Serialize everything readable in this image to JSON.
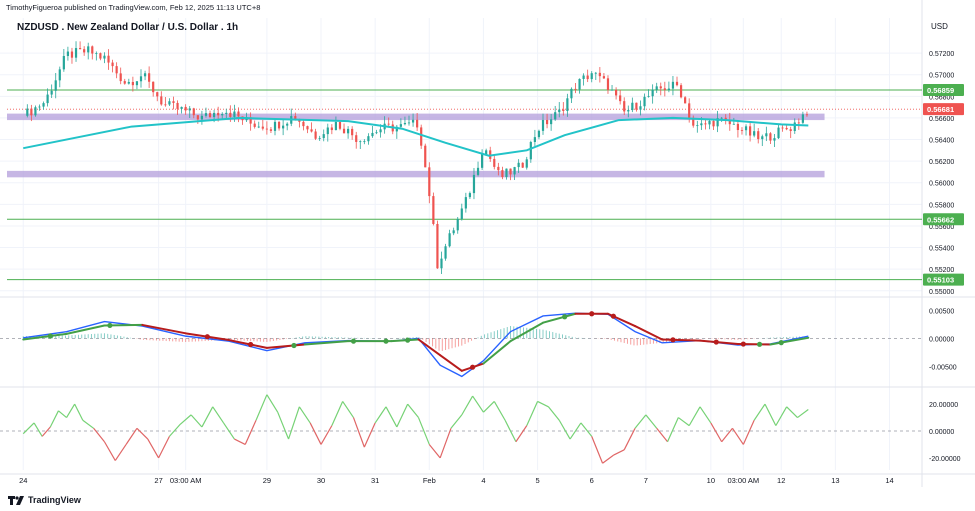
{
  "header": {
    "published": "TimothyFigueroa published on TradingView.com, Feb 12, 2025 11:13 UTC+8",
    "title": "NZDUSD . New Zealand Dollar / U.S. Dollar . 1h",
    "currency": "USD"
  },
  "footer": {
    "brand": "TradingView"
  },
  "colors": {
    "up": "#26a69a",
    "down": "#ef5350",
    "ma": "#22c3c8",
    "zone": "#b39ddb",
    "level": "#4caf50",
    "price_line": "#ef5350",
    "macd_fast": "#2962ff",
    "signal_up": "#43a047",
    "signal_down": "#b71c1c",
    "osc_up": "#76d275",
    "osc_down": "#e06666"
  },
  "chart_data": [
    {
      "type": "candlestick",
      "symbol": "NZDUSD",
      "timeframe": "1h",
      "ylim": [
        0.5497,
        0.5734
      ],
      "y_ticks": [
        0.572,
        0.57,
        0.568,
        0.566,
        0.564,
        0.562,
        0.56,
        0.558,
        0.556,
        0.554,
        0.552,
        0.55
      ],
      "y_tick_labels": [
        "0.57200",
        "0.57000",
        "0.56800",
        "0.56600",
        "0.56400",
        "0.56200",
        "0.56000",
        "0.55800",
        "0.55600",
        "0.55400",
        "0.55200",
        "0.55000"
      ],
      "x_labels": [
        {
          "t": 0.0,
          "label": "24"
        },
        {
          "t": 2.5,
          "label": "27"
        },
        {
          "t": 3.0,
          "label": "03:00 AM"
        },
        {
          "t": 4.5,
          "label": "29"
        },
        {
          "t": 5.5,
          "label": "30"
        },
        {
          "t": 6.5,
          "label": "31"
        },
        {
          "t": 7.5,
          "label": "Feb"
        },
        {
          "t": 8.5,
          "label": "4"
        },
        {
          "t": 9.5,
          "label": "5"
        },
        {
          "t": 10.5,
          "label": "6"
        },
        {
          "t": 11.5,
          "label": "7"
        },
        {
          "t": 12.7,
          "label": "10"
        },
        {
          "t": 13.3,
          "label": "03:00 AM"
        },
        {
          "t": 14.0,
          "label": "12"
        },
        {
          "t": 15.0,
          "label": "13"
        },
        {
          "t": 16.0,
          "label": "14"
        }
      ],
      "t_range": [
        -0.3,
        16.6
      ],
      "path": [
        [
          0.0,
          0.5662
        ],
        [
          0.4,
          0.5675
        ],
        [
          0.8,
          0.5718
        ],
        [
          1.2,
          0.5722
        ],
        [
          1.5,
          0.5715
        ],
        [
          1.9,
          0.5692
        ],
        [
          2.2,
          0.57
        ],
        [
          2.6,
          0.5672
        ],
        [
          2.9,
          0.5668
        ],
        [
          3.3,
          0.566
        ],
        [
          3.7,
          0.5668
        ],
        [
          4.2,
          0.5655
        ],
        [
          4.6,
          0.5652
        ],
        [
          5.0,
          0.5662
        ],
        [
          5.4,
          0.5644
        ],
        [
          5.8,
          0.5655
        ],
        [
          6.2,
          0.564
        ],
        [
          6.6,
          0.565
        ],
        [
          7.0,
          0.5652
        ],
        [
          7.3,
          0.5655
        ],
        [
          7.5,
          0.559
        ],
        [
          7.65,
          0.5525
        ],
        [
          7.9,
          0.5552
        ],
        [
          8.2,
          0.5585
        ],
        [
          8.5,
          0.5635
        ],
        [
          8.8,
          0.5605
        ],
        [
          9.2,
          0.5615
        ],
        [
          9.5,
          0.565
        ],
        [
          9.9,
          0.5665
        ],
        [
          10.2,
          0.569
        ],
        [
          10.5,
          0.5702
        ],
        [
          10.8,
          0.569
        ],
        [
          11.1,
          0.5665
        ],
        [
          11.4,
          0.5675
        ],
        [
          11.8,
          0.5688
        ],
        [
          12.1,
          0.569
        ],
        [
          12.4,
          0.565
        ],
        [
          12.8,
          0.5658
        ],
        [
          13.2,
          0.5652
        ],
        [
          13.6,
          0.564
        ],
        [
          13.9,
          0.5646
        ],
        [
          14.2,
          0.5652
        ],
        [
          14.5,
          0.5668
        ]
      ],
      "moving_average": [
        [
          0.0,
          0.5632
        ],
        [
          2.0,
          0.5652
        ],
        [
          4.0,
          0.566
        ],
        [
          6.0,
          0.5657
        ],
        [
          7.0,
          0.565
        ],
        [
          7.8,
          0.5637
        ],
        [
          8.6,
          0.5625
        ],
        [
          9.3,
          0.563
        ],
        [
          10.0,
          0.5644
        ],
        [
          11.0,
          0.5658
        ],
        [
          12.0,
          0.566
        ],
        [
          13.0,
          0.5658
        ],
        [
          14.0,
          0.5654
        ],
        [
          14.5,
          0.5653
        ]
      ],
      "zones": [
        {
          "from": 0.5658,
          "to": 0.5664
        },
        {
          "from": 0.5605,
          "to": 0.5611
        }
      ],
      "levels": [
        {
          "value": 0.56859,
          "label": "0.56859"
        },
        {
          "value": 0.55662,
          "label": "0.55662"
        },
        {
          "value": 0.55103,
          "label": "0.55103"
        }
      ],
      "last_price": {
        "value": 0.56681,
        "label": "0.56681"
      }
    },
    {
      "type": "macd",
      "ylim": [
        -0.0078,
        0.0065
      ],
      "y_ticks": [
        0.005,
        0.0,
        -0.005
      ],
      "y_tick_labels": [
        "0.00500",
        "0.00000",
        "-0.00500"
      ],
      "macd": [
        [
          0.0,
          0.0001
        ],
        [
          0.8,
          0.0012
        ],
        [
          1.5,
          0.003
        ],
        [
          2.2,
          0.0022
        ],
        [
          3.0,
          0.0004
        ],
        [
          3.8,
          -0.0005
        ],
        [
          4.5,
          -0.0022
        ],
        [
          5.2,
          -0.0008
        ],
        [
          6.0,
          -0.0004
        ],
        [
          6.8,
          -0.0005
        ],
        [
          7.3,
          0.0
        ],
        [
          7.7,
          -0.0048
        ],
        [
          8.1,
          -0.0068
        ],
        [
          8.5,
          -0.004
        ],
        [
          9.0,
          0.0012
        ],
        [
          9.6,
          0.004
        ],
        [
          10.2,
          0.0045
        ],
        [
          10.8,
          0.0043
        ],
        [
          11.3,
          0.0012
        ],
        [
          11.8,
          -0.0008
        ],
        [
          12.5,
          -0.0004
        ],
        [
          13.2,
          -0.0012
        ],
        [
          13.8,
          -0.001
        ],
        [
          14.5,
          0.0004
        ]
      ],
      "signal": [
        [
          0.0,
          -0.0002
        ],
        [
          0.8,
          0.0008
        ],
        [
          1.5,
          0.0023
        ],
        [
          2.2,
          0.0024
        ],
        [
          3.0,
          0.0009
        ],
        [
          3.8,
          -0.0003
        ],
        [
          4.5,
          -0.0017
        ],
        [
          5.2,
          -0.0011
        ],
        [
          6.0,
          -0.0005
        ],
        [
          6.8,
          -0.0005
        ],
        [
          7.3,
          -0.0002
        ],
        [
          7.7,
          -0.003
        ],
        [
          8.1,
          -0.0058
        ],
        [
          8.5,
          -0.0045
        ],
        [
          9.0,
          -0.0005
        ],
        [
          9.6,
          0.0028
        ],
        [
          10.2,
          0.0044
        ],
        [
          10.8,
          0.0044
        ],
        [
          11.3,
          0.0022
        ],
        [
          11.8,
          -0.0002
        ],
        [
          12.5,
          -0.0004
        ],
        [
          13.2,
          -0.001
        ],
        [
          13.8,
          -0.0011
        ],
        [
          14.5,
          0.0001
        ]
      ],
      "cross_points": [
        0.5,
        1.6,
        3.4,
        4.2,
        5.0,
        6.1,
        6.7,
        7.1,
        8.3,
        10.0,
        10.5,
        10.9,
        12.0,
        12.8,
        13.3,
        13.6,
        14.0
      ]
    },
    {
      "type": "oscillator",
      "ylim": [
        -29,
        29
      ],
      "y_ticks": [
        20,
        0,
        -20
      ],
      "y_tick_labels": [
        "20.00000",
        "0.00000",
        "-20.00000"
      ],
      "values": [
        [
          0.0,
          -2
        ],
        [
          0.2,
          6
        ],
        [
          0.35,
          -4
        ],
        [
          0.5,
          3
        ],
        [
          0.65,
          15
        ],
        [
          0.8,
          10
        ],
        [
          0.95,
          20
        ],
        [
          1.1,
          8
        ],
        [
          1.3,
          2
        ],
        [
          1.5,
          -8
        ],
        [
          1.7,
          -22
        ],
        [
          1.9,
          -10
        ],
        [
          2.1,
          2
        ],
        [
          2.3,
          -6
        ],
        [
          2.5,
          -20
        ],
        [
          2.7,
          -4
        ],
        [
          2.9,
          5
        ],
        [
          3.1,
          12
        ],
        [
          3.3,
          3
        ],
        [
          3.5,
          18
        ],
        [
          3.7,
          6
        ],
        [
          3.9,
          -6
        ],
        [
          4.1,
          -10
        ],
        [
          4.3,
          8
        ],
        [
          4.5,
          27
        ],
        [
          4.7,
          14
        ],
        [
          4.9,
          -6
        ],
        [
          5.1,
          18
        ],
        [
          5.3,
          6
        ],
        [
          5.5,
          -10
        ],
        [
          5.7,
          4
        ],
        [
          5.9,
          22
        ],
        [
          6.1,
          10
        ],
        [
          6.3,
          -12
        ],
        [
          6.5,
          6
        ],
        [
          6.7,
          18
        ],
        [
          6.9,
          3
        ],
        [
          7.1,
          20
        ],
        [
          7.3,
          10
        ],
        [
          7.5,
          -10
        ],
        [
          7.7,
          -20
        ],
        [
          7.9,
          2
        ],
        [
          8.1,
          12
        ],
        [
          8.3,
          26
        ],
        [
          8.5,
          14
        ],
        [
          8.7,
          22
        ],
        [
          8.9,
          8
        ],
        [
          9.1,
          -8
        ],
        [
          9.3,
          4
        ],
        [
          9.5,
          22
        ],
        [
          9.7,
          18
        ],
        [
          9.9,
          8
        ],
        [
          10.1,
          -6
        ],
        [
          10.3,
          6
        ],
        [
          10.5,
          -4
        ],
        [
          10.7,
          -24
        ],
        [
          10.9,
          -18
        ],
        [
          11.1,
          -14
        ],
        [
          11.3,
          2
        ],
        [
          11.5,
          12
        ],
        [
          11.7,
          2
        ],
        [
          11.9,
          -8
        ],
        [
          12.1,
          10
        ],
        [
          12.3,
          4
        ],
        [
          12.5,
          18
        ],
        [
          12.7,
          6
        ],
        [
          12.9,
          -8
        ],
        [
          13.1,
          2
        ],
        [
          13.3,
          -10
        ],
        [
          13.5,
          8
        ],
        [
          13.7,
          20
        ],
        [
          13.9,
          4
        ],
        [
          14.1,
          18
        ],
        [
          14.3,
          10
        ],
        [
          14.5,
          16
        ]
      ]
    }
  ]
}
